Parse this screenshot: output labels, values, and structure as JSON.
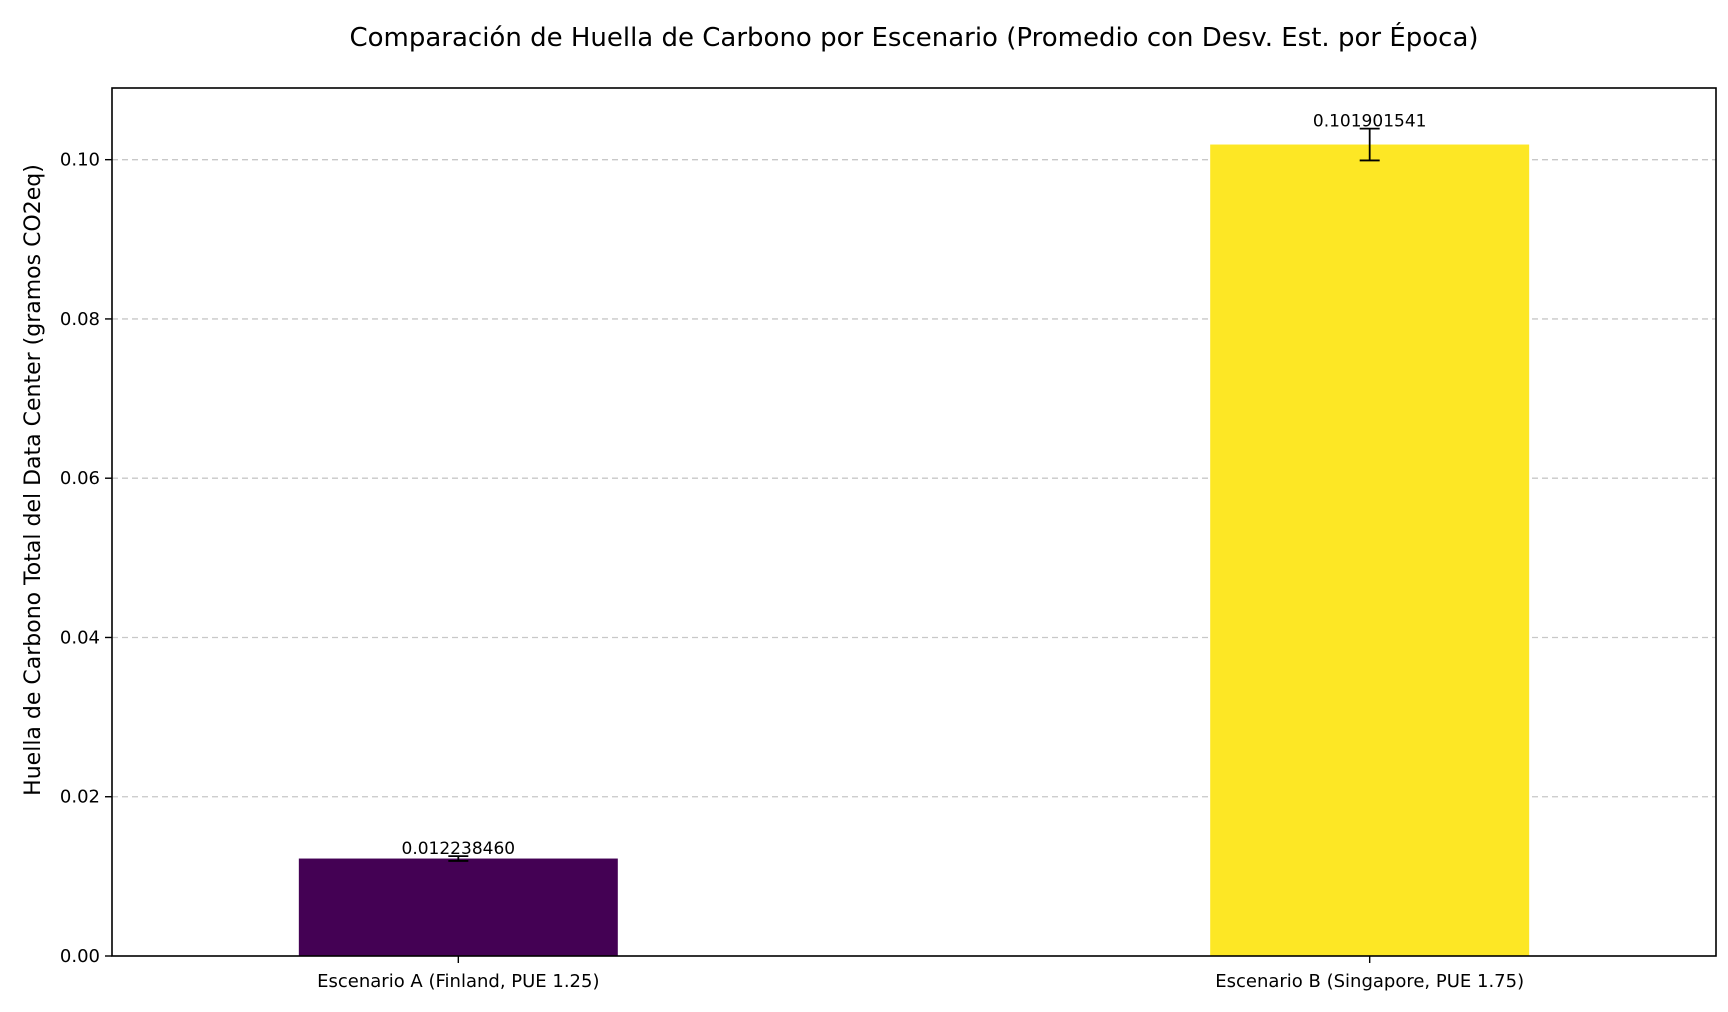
{
  "chart_data": {
    "type": "bar",
    "title": "Comparación de Huella de Carbono por Escenario (Promedio con Desv. Est. por Época)",
    "xlabel": "",
    "ylabel": "Huella de Carbono Total del Data Center (gramos CO2eq)",
    "categories": [
      "Escenario A (Finland, PUE 1.25)",
      "Escenario B (Singapore, PUE 1.75)"
    ],
    "values": [
      0.01223846,
      0.101901541
    ],
    "errors": [
      0.0003,
      0.002
    ],
    "value_labels": [
      "0.012238460",
      "0.101901541"
    ],
    "bar_colors": [
      "#440154",
      "#fde725"
    ],
    "ylim": [
      0,
      0.109
    ],
    "yticks": [
      0.0,
      0.02,
      0.04,
      0.06,
      0.08,
      0.1
    ],
    "ytick_labels": [
      "0.00",
      "0.02",
      "0.04",
      "0.06",
      "0.08",
      "0.10"
    ],
    "grid": {
      "axis": "y",
      "style": "dashed",
      "color": "#c8c8c8"
    },
    "legend": "none"
  }
}
